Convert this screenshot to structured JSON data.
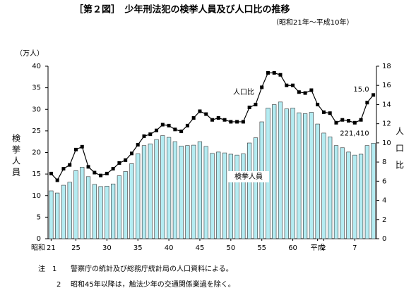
{
  "chart_data": {
    "type": "bar-line",
    "title": "［第２図］　少年刑法犯の検挙人員及び人口比の推移",
    "subtitle": "（昭和21年～平成10年）",
    "y_unit": "（万人）",
    "ylabel": "検挙人員",
    "y2label": "人口比",
    "x_era_label": "昭和",
    "categories": [
      "21",
      null,
      null,
      null,
      "25",
      null,
      null,
      null,
      null,
      "30",
      null,
      null,
      null,
      null,
      "35",
      null,
      null,
      null,
      null,
      "40",
      null,
      null,
      null,
      null,
      "45",
      null,
      null,
      null,
      null,
      "50",
      null,
      null,
      null,
      null,
      "55",
      null,
      null,
      null,
      null,
      "60",
      null,
      null,
      null,
      "平成",
      "2",
      null,
      null,
      null,
      null,
      "7",
      null,
      null,
      null
    ],
    "series": [
      {
        "name": "検挙人員",
        "color": "#b4ecf2",
        "values": [
          11.1,
          10.6,
          12.4,
          13.1,
          15.8,
          16.6,
          14.4,
          12.6,
          12.1,
          12.2,
          12.7,
          14.6,
          15.6,
          17.4,
          19.7,
          21.6,
          22.0,
          23.0,
          23.9,
          23.5,
          22.5,
          21.5,
          21.6,
          21.7,
          22.5,
          21.4,
          19.8,
          20.1,
          19.9,
          19.6,
          19.4,
          19.7,
          22.2,
          23.4,
          27.1,
          30.3,
          31.1,
          31.7,
          30.1,
          30.3,
          29.2,
          29.0,
          29.3,
          26.6,
          24.5,
          23.6,
          21.6,
          21.1,
          20.1,
          19.4,
          19.6,
          21.6,
          22.141
        ],
        "value_labels": [
          null,
          null,
          null,
          null,
          null,
          null,
          null,
          null,
          null,
          null,
          null,
          null,
          null,
          null,
          null,
          null,
          null,
          null,
          null,
          null,
          null,
          null,
          null,
          null,
          null,
          null,
          null,
          null,
          null,
          null,
          null,
          null,
          null,
          null,
          null,
          null,
          null,
          null,
          null,
          null,
          null,
          null,
          null,
          null,
          null,
          null,
          null,
          null,
          null,
          null,
          null,
          null,
          "221,410"
        ]
      },
      {
        "name": "人口比",
        "color": "#000000",
        "axis": "y2",
        "values": [
          6.8,
          6.1,
          7.3,
          7.7,
          9.3,
          9.6,
          7.5,
          6.9,
          6.6,
          6.8,
          7.3,
          7.9,
          8.2,
          8.9,
          9.8,
          10.7,
          10.9,
          11.3,
          11.9,
          11.8,
          11.4,
          11.2,
          11.8,
          12.6,
          13.3,
          13.0,
          12.4,
          12.6,
          12.4,
          12.2,
          12.2,
          12.2,
          13.7,
          14.0,
          15.8,
          17.3,
          17.3,
          17.1,
          16.0,
          16.0,
          15.3,
          15.2,
          15.5,
          14.0,
          13.2,
          13.1,
          12.1,
          12.4,
          12.3,
          12.1,
          12.4,
          14.2,
          15.0
        ],
        "value_labels": [
          null,
          null,
          null,
          null,
          null,
          null,
          null,
          null,
          null,
          null,
          null,
          null,
          null,
          null,
          null,
          null,
          null,
          null,
          null,
          null,
          null,
          null,
          null,
          null,
          null,
          null,
          null,
          null,
          null,
          null,
          null,
          null,
          null,
          null,
          null,
          null,
          null,
          null,
          null,
          null,
          null,
          null,
          null,
          null,
          null,
          null,
          null,
          null,
          null,
          null,
          null,
          null,
          "15.0"
        ]
      }
    ],
    "ylim": [
      0,
      40
    ],
    "yticks": [
      0,
      5,
      10,
      15,
      20,
      25,
      30,
      35,
      40
    ],
    "y2lim": [
      0,
      18
    ],
    "y2ticks": [
      0,
      2,
      4,
      6,
      8,
      10,
      12,
      14,
      16,
      18
    ],
    "notes": [
      {
        "marker": "注　1",
        "text": "警察庁の統計及び総務庁統計局の人口資料による。"
      },
      {
        "marker": "2",
        "text": "昭和45年以降は，触法少年の交通関係業過を除く。"
      }
    ]
  }
}
